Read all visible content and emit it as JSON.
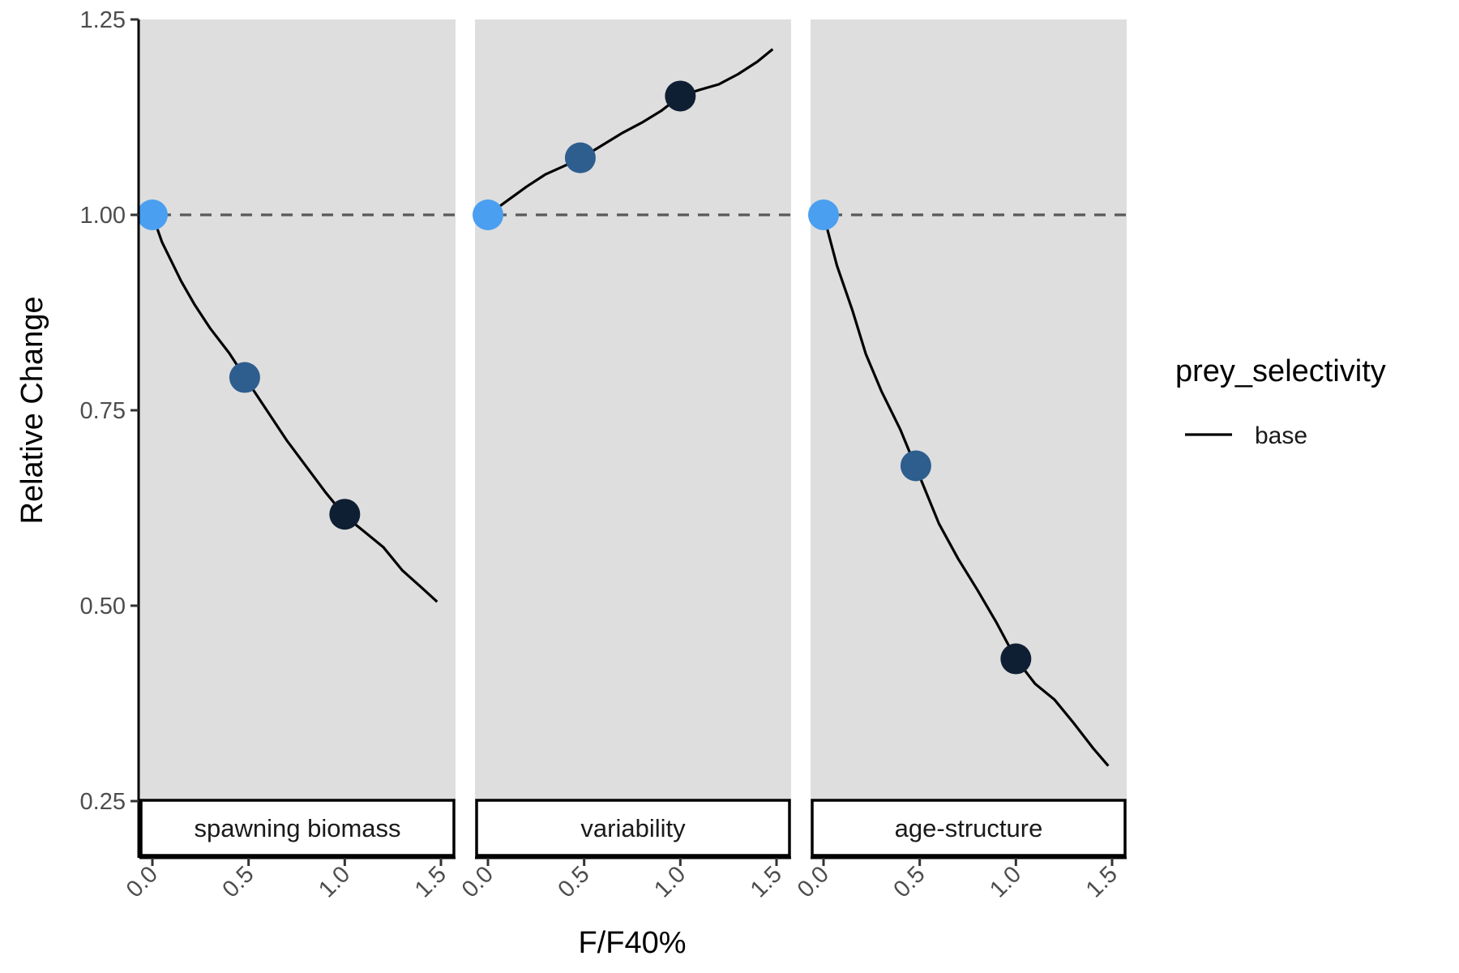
{
  "chart_data": {
    "type": "line",
    "xlabel": "F/F40%",
    "ylabel": "Relative Change",
    "ylim": [
      0.25,
      1.25
    ],
    "xlim": [
      0.0,
      1.5
    ],
    "y_ticks": [
      "0.25",
      "0.50",
      "0.75",
      "1.00",
      "1.25"
    ],
    "x_ticks": [
      "0.0",
      "0.5",
      "1.0",
      "1.5"
    ],
    "reference_line": 1.0,
    "legend": {
      "title": "prey_selectivity",
      "entries": [
        "base"
      ],
      "position": "right"
    },
    "point_colors": [
      "#4a9ff0",
      "#2e5e8e",
      "#0f1f33"
    ],
    "line_color": "#000000",
    "panel_background": "#dedede",
    "panels": [
      {
        "title": "spawning biomass",
        "x": [
          0.0,
          0.05,
          0.15,
          0.22,
          0.3,
          0.4,
          0.5,
          0.6,
          0.7,
          0.8,
          0.9,
          1.0,
          1.1,
          1.2,
          1.3,
          1.4,
          1.48
        ],
        "y": [
          1.0,
          0.965,
          0.915,
          0.885,
          0.855,
          0.823,
          0.785,
          0.748,
          0.711,
          0.678,
          0.645,
          0.615,
          0.595,
          0.575,
          0.545,
          0.523,
          0.505
        ],
        "points": [
          {
            "x": 0.0,
            "y": 1.0
          },
          {
            "x": 0.48,
            "y": 0.792
          },
          {
            "x": 1.0,
            "y": 0.617
          }
        ]
      },
      {
        "title": "variability",
        "x": [
          0.0,
          0.1,
          0.2,
          0.3,
          0.4,
          0.5,
          0.6,
          0.7,
          0.8,
          0.9,
          1.0,
          1.1,
          1.2,
          1.3,
          1.4,
          1.48
        ],
        "y": [
          1.0,
          1.018,
          1.036,
          1.052,
          1.063,
          1.075,
          1.09,
          1.105,
          1.118,
          1.133,
          1.152,
          1.16,
          1.167,
          1.18,
          1.196,
          1.212
        ],
        "points": [
          {
            "x": 0.0,
            "y": 1.0
          },
          {
            "x": 0.48,
            "y": 1.073
          },
          {
            "x": 1.0,
            "y": 1.152
          }
        ]
      },
      {
        "title": "age-structure",
        "x": [
          0.0,
          0.07,
          0.15,
          0.22,
          0.3,
          0.4,
          0.5,
          0.6,
          0.7,
          0.8,
          0.9,
          1.0,
          1.1,
          1.2,
          1.3,
          1.4,
          1.48
        ],
        "y": [
          1.0,
          0.935,
          0.878,
          0.822,
          0.775,
          0.725,
          0.665,
          0.605,
          0.56,
          0.52,
          0.478,
          0.432,
          0.4,
          0.38,
          0.35,
          0.318,
          0.295
        ],
        "points": [
          {
            "x": 0.0,
            "y": 1.0
          },
          {
            "x": 0.48,
            "y": 0.679
          },
          {
            "x": 1.0,
            "y": 0.432
          }
        ]
      }
    ]
  }
}
